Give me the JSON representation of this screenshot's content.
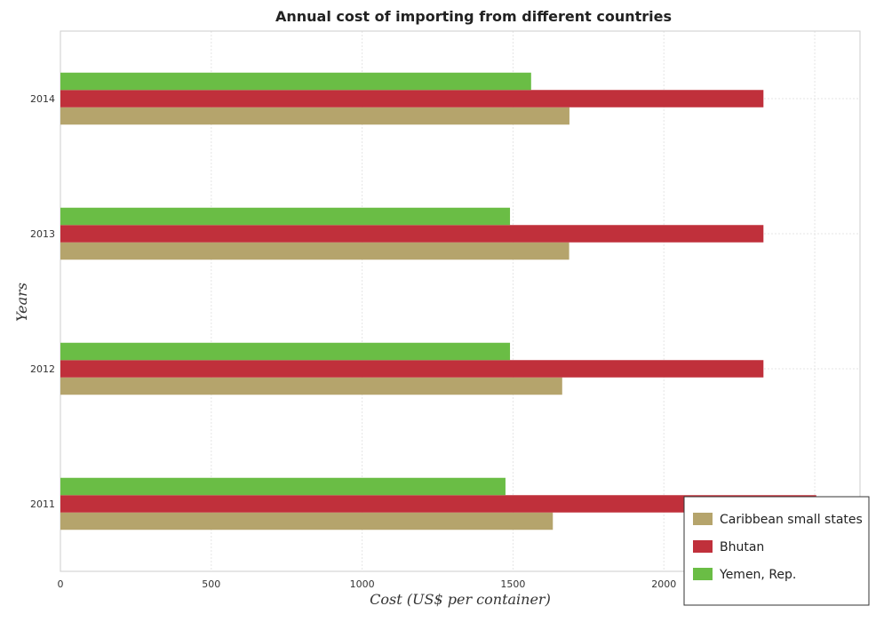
{
  "chart_data": {
    "type": "bar",
    "orientation": "horizontal",
    "title": "Annual cost of importing from different countries",
    "xlabel": "Cost (US$ per container)",
    "ylabel": "Years",
    "categories": [
      "2011",
      "2012",
      "2013",
      "2014"
    ],
    "xlim": [
      0,
      2650
    ],
    "xticks": [
      0,
      500,
      1000,
      1500,
      2000,
      2500
    ],
    "grid": true,
    "legend_position": "bottom-right",
    "series": [
      {
        "name": "Caribbean small states",
        "color": "#b5a46c",
        "values": [
          1632,
          1663,
          1686,
          1687
        ]
      },
      {
        "name": "Bhutan",
        "color": "#c0303b",
        "values": [
          2505,
          2330,
          2330,
          2330
        ]
      },
      {
        "name": "Yemen, Rep.",
        "color": "#6abd45",
        "values": [
          1475,
          1490,
          1490,
          1560
        ]
      }
    ]
  }
}
